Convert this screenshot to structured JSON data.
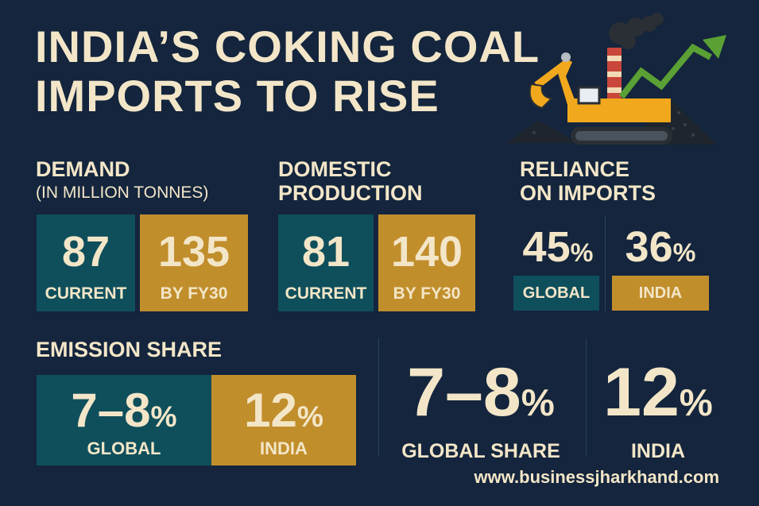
{
  "title": {
    "line1": "INDIA’S COKING COAL",
    "line2": "IMPORTS TO RISE"
  },
  "demand": {
    "heading": "DEMAND",
    "subheading": "(IN MILLION TONNES)",
    "current_value": "87",
    "current_label": "CURRENT",
    "future_value": "135",
    "future_label": "BY FY30"
  },
  "domestic": {
    "heading_line1": "DOMESTIC",
    "heading_line2": "PRODUCTION",
    "current_value": "81",
    "current_label": "CURRENT",
    "future_value": "140",
    "future_label": "BY FY30"
  },
  "reliance": {
    "heading_line1": "RELIANCE",
    "heading_line2": "ON IMPORTS",
    "global_value": "45",
    "global_unit": "%",
    "global_label": "GLOBAL",
    "india_value": "36",
    "india_unit": "%",
    "india_label": "INDIA"
  },
  "emission": {
    "heading": "EMISSION SHARE",
    "global_value": "7–8",
    "global_unit": "%",
    "global_label": "GLOBAL",
    "india_value": "12",
    "india_unit": "%",
    "india_label": "INDIA"
  },
  "big_stats": {
    "global_value": "7–8",
    "global_unit": "%",
    "global_label": "GLOBAL SHARE",
    "india_value": "12",
    "india_unit": "%",
    "india_label": "INDIA"
  },
  "footer": {
    "url": "www.businessjharkhand.com"
  },
  "colors": {
    "background": "#14253d",
    "teal": "#0f4f5c",
    "gold": "#c18e2c",
    "text": "#f3e6c8"
  },
  "icons": [
    "excavator-icon",
    "factory-chimney-icon",
    "rising-arrow-icon",
    "coal-pile-icon"
  ]
}
